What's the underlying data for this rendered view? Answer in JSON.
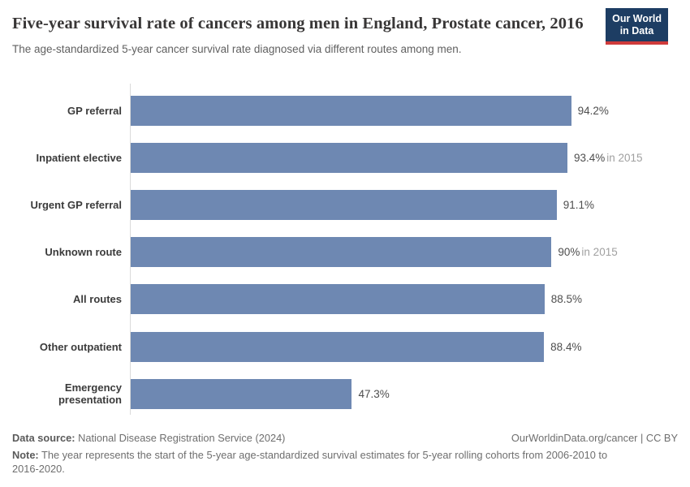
{
  "header": {
    "title": "Five-year survival rate of cancers among men in England, Prostate cancer, 2016",
    "subtitle": "The age-standardized 5-year cancer survival rate diagnosed via different routes among men.",
    "logo": {
      "line1": "Our World",
      "line2": "in Data"
    }
  },
  "chart_data": {
    "type": "bar",
    "orientation": "horizontal",
    "title": "Five-year survival rate of cancers among men in England, Prostate cancer, 2016",
    "subtitle": "The age-standardized 5-year cancer survival rate diagnosed via different routes among men.",
    "categories": [
      "GP referral",
      "Inpatient elective",
      "Urgent GP referral",
      "Unknown route",
      "All routes",
      "Other outpatient",
      "Emergency presentation"
    ],
    "values": [
      94.2,
      93.4,
      91.1,
      90,
      88.5,
      88.4,
      47.3
    ],
    "value_labels": [
      "94.2%",
      "93.4%",
      "91.1%",
      "90%",
      "88.5%",
      "88.4%",
      "47.3%"
    ],
    "value_suffixes": [
      "",
      "in 2015",
      "",
      "in 2015",
      "",
      "",
      ""
    ],
    "xlim": [
      0,
      100
    ],
    "unit": "%",
    "bar_color": "#6e88b2",
    "grid": "off",
    "legend": "none"
  },
  "footer": {
    "data_source_label": "Data source:",
    "data_source": "National Disease Registration Service (2024)",
    "link": "OurWorldinData.org/cancer | CC BY",
    "note_label": "Note:",
    "note": "The year represents the start of the 5-year age-standardized survival estimates for 5-year rolling cohorts from 2006-2010 to 2016-2020."
  },
  "colors": {
    "bar": "#6e88b2",
    "logo_navy": "#1d3d63",
    "logo_red": "#cf3b3b",
    "title_text": "#383636",
    "axis_line": "#dadada"
  }
}
